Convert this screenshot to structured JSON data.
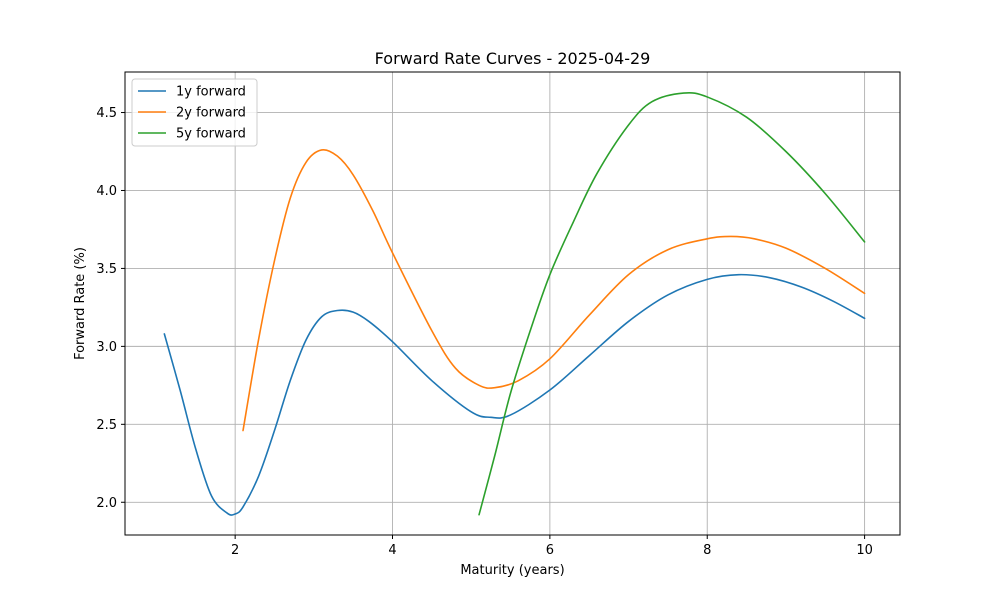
{
  "chart_data": {
    "type": "line",
    "title": "Forward Rate Curves - 2025-04-29",
    "xlabel": "Maturity (years)",
    "ylabel": "Forward Rate (%)",
    "xlim": [
      0.6,
      10.45
    ],
    "ylim": [
      1.79,
      4.76
    ],
    "x_ticks": [
      2,
      4,
      6,
      8,
      10
    ],
    "x_tick_labels": [
      "2",
      "4",
      "6",
      "8",
      "10"
    ],
    "y_ticks": [
      2.0,
      2.5,
      3.0,
      3.5,
      4.0,
      4.5
    ],
    "y_tick_labels": [
      "2.0",
      "2.5",
      "3.0",
      "3.5",
      "4.0",
      "4.5"
    ],
    "grid": true,
    "legend_position": "top-left",
    "series": [
      {
        "name": "1y forward",
        "color": "#1f77b4",
        "points": [
          [
            1.1,
            3.08
          ],
          [
            1.3,
            2.72
          ],
          [
            1.5,
            2.34
          ],
          [
            1.7,
            2.04
          ],
          [
            1.9,
            1.93
          ],
          [
            2.0,
            1.925
          ],
          [
            2.1,
            1.97
          ],
          [
            2.3,
            2.17
          ],
          [
            2.5,
            2.46
          ],
          [
            2.7,
            2.78
          ],
          [
            2.9,
            3.04
          ],
          [
            3.1,
            3.19
          ],
          [
            3.3,
            3.23
          ],
          [
            3.5,
            3.22
          ],
          [
            3.7,
            3.16
          ],
          [
            4.0,
            3.03
          ],
          [
            4.5,
            2.78
          ],
          [
            5.0,
            2.58
          ],
          [
            5.25,
            2.545
          ],
          [
            5.5,
            2.56
          ],
          [
            6.0,
            2.72
          ],
          [
            6.5,
            2.94
          ],
          [
            7.0,
            3.16
          ],
          [
            7.5,
            3.33
          ],
          [
            8.0,
            3.43
          ],
          [
            8.4,
            3.46
          ],
          [
            8.8,
            3.44
          ],
          [
            9.2,
            3.38
          ],
          [
            9.6,
            3.29
          ],
          [
            10.0,
            3.18
          ]
        ]
      },
      {
        "name": "2y forward",
        "color": "#ff7f0e",
        "points": [
          [
            2.1,
            2.46
          ],
          [
            2.3,
            3.05
          ],
          [
            2.5,
            3.55
          ],
          [
            2.7,
            3.95
          ],
          [
            2.9,
            4.18
          ],
          [
            3.1,
            4.26
          ],
          [
            3.3,
            4.22
          ],
          [
            3.5,
            4.1
          ],
          [
            3.75,
            3.87
          ],
          [
            4.0,
            3.6
          ],
          [
            4.5,
            3.1
          ],
          [
            4.8,
            2.86
          ],
          [
            5.1,
            2.75
          ],
          [
            5.3,
            2.735
          ],
          [
            5.6,
            2.78
          ],
          [
            6.0,
            2.92
          ],
          [
            6.5,
            3.2
          ],
          [
            7.0,
            3.46
          ],
          [
            7.5,
            3.62
          ],
          [
            8.0,
            3.69
          ],
          [
            8.3,
            3.705
          ],
          [
            8.6,
            3.69
          ],
          [
            9.0,
            3.63
          ],
          [
            9.5,
            3.5
          ],
          [
            10.0,
            3.34
          ]
        ]
      },
      {
        "name": "5y forward",
        "color": "#2ca02c",
        "points": [
          [
            5.1,
            1.92
          ],
          [
            5.3,
            2.3
          ],
          [
            5.5,
            2.7
          ],
          [
            5.75,
            3.1
          ],
          [
            6.0,
            3.46
          ],
          [
            6.3,
            3.8
          ],
          [
            6.6,
            4.11
          ],
          [
            7.0,
            4.42
          ],
          [
            7.3,
            4.57
          ],
          [
            7.7,
            4.625
          ],
          [
            8.0,
            4.6
          ],
          [
            8.5,
            4.47
          ],
          [
            9.0,
            4.25
          ],
          [
            9.5,
            3.98
          ],
          [
            10.0,
            3.67
          ]
        ]
      }
    ]
  }
}
